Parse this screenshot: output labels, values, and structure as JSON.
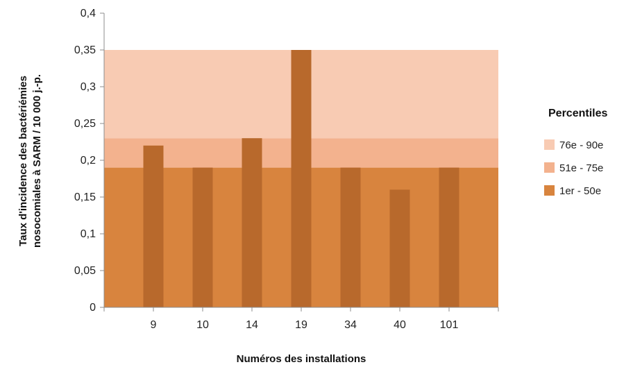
{
  "chart_data": {
    "type": "bar",
    "xlabel": "Numéros des installations",
    "ylabel_lines": [
      "Taux d'incidence des bactériémies",
      "nosocomiales à SARM / 10 000 j.-p."
    ],
    "ylim": [
      0,
      0.4
    ],
    "y_ticks": [
      0,
      0.05,
      0.1,
      0.15,
      0.2,
      0.25,
      0.3,
      0.35,
      0.4
    ],
    "y_tick_labels": [
      "0",
      "0,05",
      "0,1",
      "0,15",
      "0,2",
      "0,25",
      "0,3",
      "0,35",
      "0,4"
    ],
    "categories": [
      "9",
      "10",
      "14",
      "19",
      "34",
      "40",
      "101"
    ],
    "values": [
      0.22,
      0.19,
      0.23,
      0.35,
      0.19,
      0.16,
      0.19
    ],
    "bar_color": "#b8692c",
    "bands": [
      {
        "label": "1er - 50e",
        "from": 0,
        "to": 0.19,
        "color": "#d8843e"
      },
      {
        "label": "51e - 75e",
        "from": 0.19,
        "to": 0.23,
        "color": "#f3b28e"
      },
      {
        "label": "76e - 90e",
        "from": 0.23,
        "to": 0.35,
        "color": "#f8cbb3"
      }
    ],
    "legend": {
      "title": "Percentiles",
      "position": "right",
      "entries": [
        {
          "label": "76e - 90e",
          "color": "#f8cbb3"
        },
        {
          "label": "51e - 75e",
          "color": "#f3b28e"
        },
        {
          "label": "1er - 50e",
          "color": "#d8843e"
        }
      ]
    },
    "grid": false
  }
}
